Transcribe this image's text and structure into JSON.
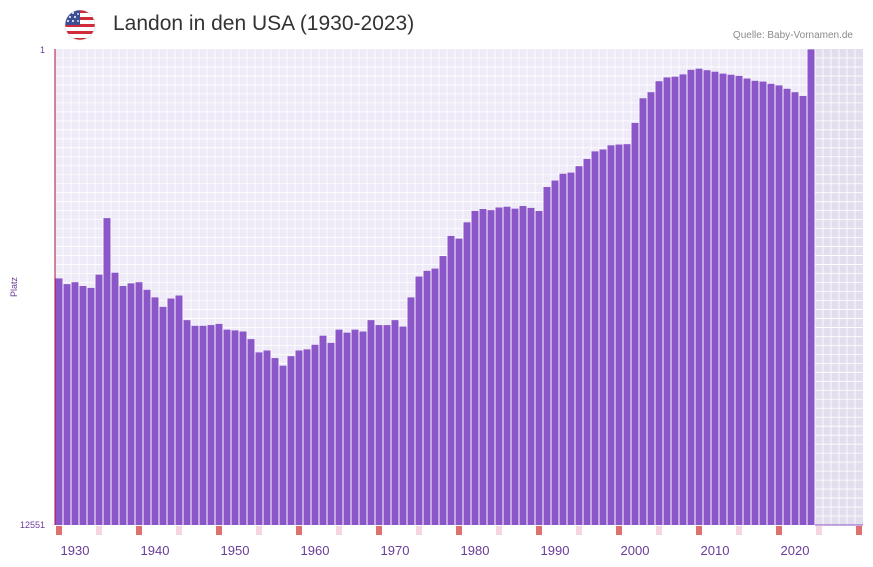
{
  "title": "Landon in den USA (1930-2023)",
  "source": "Quelle: Baby-Vornamen.de",
  "flag_icon": "us-flag-icon",
  "colors": {
    "bar": "#8b56c8",
    "plot_bg": "#efeaf7",
    "future_bg": "#e3deed",
    "grid": "#ffffff",
    "axis": "#a8123a",
    "accent_tick": "#e07070",
    "axis_text": "#6a3d9a"
  },
  "chart_data": {
    "type": "bar",
    "title": "Landon in den USA (1930-2023)",
    "xlabel": "",
    "ylabel": "Platz",
    "y_inverted": true,
    "ylim": [
      1,
      12551
    ],
    "y_tick_labels": [
      "1",
      "12551"
    ],
    "x_tick_labels": [
      "1930",
      "1940",
      "1950",
      "1960",
      "1970",
      "1980",
      "1990",
      "2000",
      "2010",
      "2020"
    ],
    "x_axis_range": [
      1928,
      2028
    ],
    "years": [
      1928,
      1929,
      1930,
      1931,
      1932,
      1933,
      1934,
      1935,
      1936,
      1937,
      1938,
      1939,
      1940,
      1941,
      1942,
      1943,
      1944,
      1945,
      1946,
      1947,
      1948,
      1949,
      1950,
      1951,
      1952,
      1953,
      1954,
      1955,
      1956,
      1957,
      1958,
      1959,
      1960,
      1961,
      1962,
      1963,
      1964,
      1965,
      1966,
      1967,
      1968,
      1969,
      1970,
      1971,
      1972,
      1973,
      1974,
      1975,
      1976,
      1977,
      1978,
      1979,
      1980,
      1981,
      1982,
      1983,
      1984,
      1985,
      1986,
      1987,
      1988,
      1989,
      1990,
      1991,
      1992,
      1993,
      1994,
      1995,
      1996,
      1997,
      1998,
      1999,
      2000,
      2001,
      2002,
      2003,
      2004,
      2005,
      2006,
      2007,
      2008,
      2009,
      2010,
      2011,
      2012,
      2013,
      2014,
      2015,
      2016,
      2017,
      2018,
      2019,
      2020,
      2021,
      2022
    ],
    "values": [
      6050,
      6200,
      6150,
      6250,
      6300,
      5950,
      4460,
      5900,
      6250,
      6180,
      6150,
      6350,
      6550,
      6800,
      6580,
      6500,
      7150,
      7300,
      7300,
      7280,
      7250,
      7400,
      7420,
      7450,
      7650,
      8000,
      7950,
      8150,
      8350,
      8100,
      7950,
      7920,
      7800,
      7560,
      7750,
      7400,
      7480,
      7400,
      7450,
      7150,
      7280,
      7280,
      7150,
      7320,
      6550,
      6000,
      5850,
      5790,
      5460,
      4930,
      5000,
      4570,
      4270,
      4220,
      4250,
      4180,
      4160,
      4210,
      4140,
      4190,
      4270,
      3640,
      3470,
      3290,
      3260,
      3090,
      2900,
      2700,
      2650,
      2540,
      2520,
      2510,
      1950,
      1300,
      1140,
      850,
      750,
      730,
      670,
      550,
      520,
      560,
      600,
      650,
      680,
      710,
      780,
      840,
      860,
      920,
      960,
      1050,
      1140,
      1240,
      11
    ]
  }
}
